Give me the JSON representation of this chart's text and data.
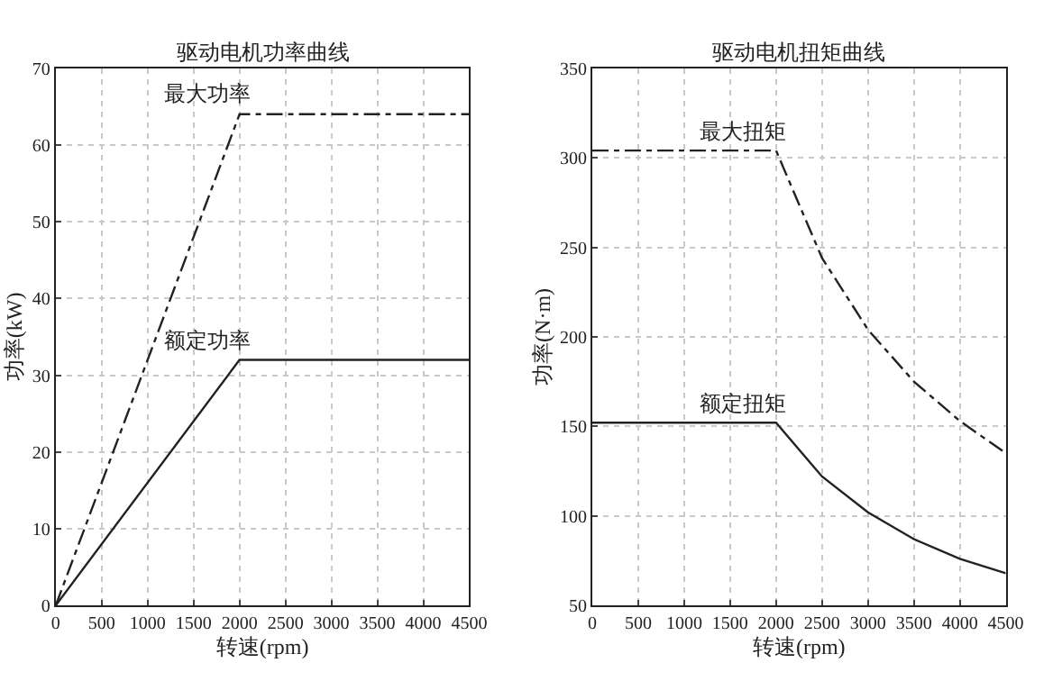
{
  "chart_data": [
    {
      "type": "line",
      "title": "驱动电机功率曲线",
      "xlabel": "转速(rpm)",
      "ylabel": "功率(kW)",
      "xlim": [
        0,
        4500
      ],
      "xticks": [
        0,
        500,
        1000,
        1500,
        2000,
        2500,
        3000,
        3500,
        4000,
        4500
      ],
      "ylim": [
        0,
        70
      ],
      "yticks": [
        0,
        10,
        20,
        30,
        40,
        50,
        60,
        70
      ],
      "grid": true,
      "series": [
        {
          "name": "最大功率",
          "color": "#222222",
          "line_style": "dashed",
          "x": [
            0,
            2000,
            4500
          ],
          "values": [
            0,
            64,
            64
          ]
        },
        {
          "name": "额定功率",
          "color": "#222222",
          "line_style": "solid",
          "x": [
            0,
            2000,
            4500
          ],
          "values": [
            0,
            32,
            32
          ]
        }
      ]
    },
    {
      "type": "line",
      "title": "驱动电机扭矩曲线",
      "xlabel": "转速(rpm)",
      "ylabel": "功率(N·m)",
      "xlim": [
        0,
        4500
      ],
      "xticks": [
        0,
        500,
        1000,
        1500,
        2000,
        2500,
        3000,
        3500,
        4000,
        4500
      ],
      "ylim": [
        50,
        350
      ],
      "yticks": [
        50,
        100,
        150,
        200,
        250,
        300,
        350
      ],
      "grid": true,
      "series": [
        {
          "name": "最大扭矩",
          "color": "#222222",
          "line_style": "dashed",
          "x": [
            0,
            2000,
            2500,
            3000,
            3500,
            4000,
            4500
          ],
          "values": [
            304,
            304,
            244,
            204,
            175,
            153,
            135
          ]
        },
        {
          "name": "额定扭矩",
          "color": "#222222",
          "line_style": "solid",
          "x": [
            0,
            2000,
            2500,
            3000,
            3500,
            4000,
            4500
          ],
          "values": [
            152,
            152,
            122,
            102,
            87,
            76,
            68
          ]
        }
      ]
    }
  ]
}
